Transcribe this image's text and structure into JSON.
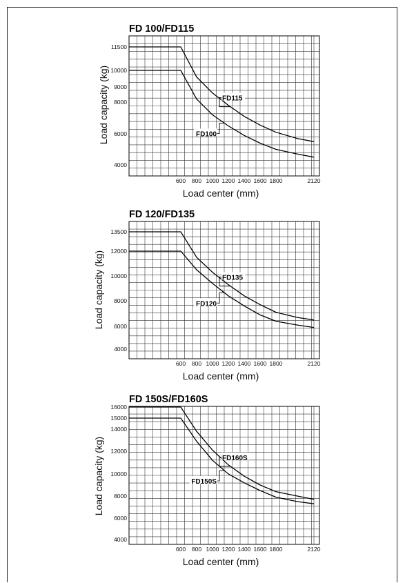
{
  "chart_data": [
    {
      "type": "line",
      "title": "FD 100/FD115",
      "xlabel": "Load center (mm)",
      "ylabel": "Load capacity (kg)",
      "xlim": [
        0,
        2120
      ],
      "ylim": [
        3700,
        11800
      ],
      "x_ticks": [
        600,
        800,
        1000,
        1200,
        1400,
        1600,
        1800,
        2120
      ],
      "y_ticks": [
        4000,
        6000,
        8000,
        9000,
        10000,
        11500
      ],
      "grid": true,
      "series": [
        {
          "name": "FD115",
          "x": [
            0,
            600,
            800,
            1000,
            1200,
            1400,
            1600,
            1800,
            2000,
            2120
          ],
          "values": [
            11500,
            11500,
            9600,
            8600,
            7800,
            7100,
            6550,
            6100,
            5700,
            5500
          ]
        },
        {
          "name": "FD100",
          "x": [
            0,
            600,
            800,
            1000,
            1200,
            1400,
            1600,
            1800,
            2000,
            2120
          ],
          "values": [
            10000,
            10000,
            8200,
            7200,
            6500,
            5900,
            5400,
            5000,
            4700,
            4500
          ]
        }
      ]
    },
    {
      "type": "line",
      "title": "FD 120/FD135",
      "xlabel": "Load center (mm)",
      "ylabel": "Load capacity (kg)",
      "xlim": [
        0,
        2120
      ],
      "ylim": [
        3700,
        13800
      ],
      "x_ticks": [
        600,
        800,
        1000,
        1200,
        1400,
        1600,
        1800,
        2120
      ],
      "y_ticks": [
        4000,
        6000,
        8000,
        10000,
        12000,
        13500
      ],
      "grid": true,
      "series": [
        {
          "name": "FD135",
          "x": [
            0,
            600,
            800,
            1000,
            1200,
            1400,
            1600,
            1800,
            2000,
            2120
          ],
          "values": [
            13500,
            13500,
            11500,
            10300,
            9300,
            8400,
            7700,
            7100,
            6700,
            6500
          ]
        },
        {
          "name": "FD120",
          "x": [
            0,
            600,
            800,
            1000,
            1200,
            1400,
            1600,
            1800,
            2000,
            2120
          ],
          "values": [
            12000,
            12000,
            10500,
            9400,
            8400,
            7600,
            6900,
            6400,
            6100,
            5900
          ]
        }
      ]
    },
    {
      "type": "line",
      "title": "FD 150S/FD160S",
      "xlabel": "Load center (mm)",
      "ylabel": "Load capacity (kg)",
      "xlim": [
        0,
        2120
      ],
      "ylim": [
        3700,
        16300
      ],
      "x_ticks": [
        600,
        800,
        1000,
        1200,
        1400,
        1600,
        1800,
        2120
      ],
      "y_ticks": [
        4000,
        6000,
        8000,
        10000,
        12000,
        14000,
        15000,
        16000
      ],
      "grid": true,
      "series": [
        {
          "name": "FD160S",
          "x": [
            0,
            600,
            800,
            1000,
            1200,
            1400,
            1600,
            1800,
            2000,
            2120
          ],
          "values": [
            16000,
            16000,
            13800,
            12100,
            10800,
            9800,
            9000,
            8400,
            8000,
            7700
          ]
        },
        {
          "name": "FD150S",
          "x": [
            0,
            600,
            800,
            1000,
            1200,
            1400,
            1600,
            1800,
            2000,
            2120
          ],
          "values": [
            15000,
            15000,
            12900,
            11200,
            10000,
            9200,
            8500,
            7900,
            7500,
            7300
          ]
        }
      ]
    }
  ]
}
